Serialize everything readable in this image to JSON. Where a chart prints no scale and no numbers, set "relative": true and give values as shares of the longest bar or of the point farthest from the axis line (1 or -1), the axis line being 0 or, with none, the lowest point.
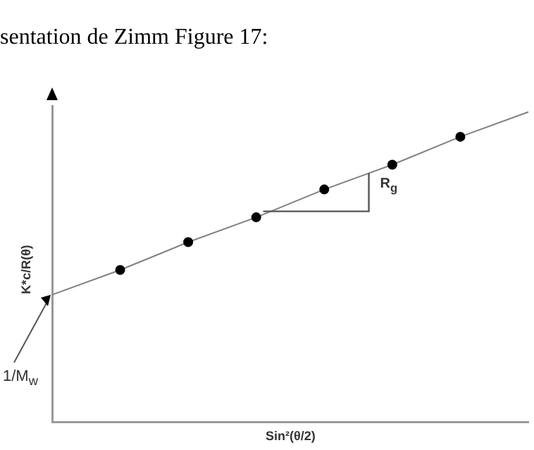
{
  "chart_data": {
    "type": "line",
    "title": "sentation de Zimm Figure 17:",
    "xlabel": "Sin²(θ/2)",
    "ylabel": "K*c/R(θ)",
    "relative": true,
    "legend": false,
    "categories": [
      null,
      null,
      null,
      null,
      null,
      null,
      null,
      null
    ],
    "series": [
      {
        "color": "#808080",
        "values": [
          0.41,
          0.49,
          0.58,
          0.66,
          0.75,
          0.83,
          0.92,
          1.0
        ],
        "marker": "circle"
      }
    ],
    "annotations": [
      "1/M$_{w}$",
      "R$_{g}$"
    ]
  }
}
